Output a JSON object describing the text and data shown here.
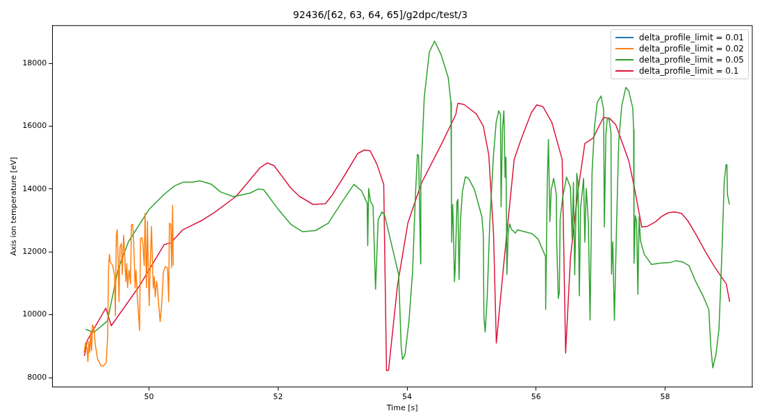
{
  "chart_data": {
    "type": "line",
    "title": "92436/[62, 63, 64, 65]/g2dpc/test/3",
    "xlabel": "Time [s]",
    "ylabel": "Axis ion temperature [eV]",
    "xlim": [
      48.5,
      59.35
    ],
    "xticks": [
      50,
      52,
      54,
      56,
      58
    ],
    "ylim": [
      7700,
      19200
    ],
    "yticks": [
      8000,
      10000,
      12000,
      14000,
      16000,
      18000
    ],
    "legend": "top right",
    "series": [
      {
        "name": "delta_profile_limit = 0.01",
        "color": "#1f77b4"
      },
      {
        "name": "delta_profile_limit = 0.02",
        "color": "#ff7f0e",
        "x": [
          48.993,
          49.018,
          49.039,
          49.053,
          49.067,
          49.082,
          49.096,
          49.11,
          49.124,
          49.146,
          49.17,
          49.205,
          49.259,
          49.295,
          49.337,
          49.359,
          49.372,
          49.386,
          49.401,
          49.436,
          49.465,
          49.479,
          49.493,
          49.507,
          49.524,
          49.535,
          49.55,
          49.571,
          49.585,
          49.606,
          49.62,
          49.641,
          49.656,
          49.667,
          49.691,
          49.713,
          49.727,
          49.748,
          49.763,
          49.784,
          49.798,
          49.819,
          49.833,
          49.854,
          49.869,
          49.89,
          49.904,
          49.926,
          49.939,
          49.961,
          49.976,
          49.989,
          50.003,
          50.018,
          50.039,
          50.053,
          50.067,
          50.082,
          50.096,
          50.117,
          50.131,
          50.146,
          50.173,
          50.199,
          50.223,
          50.252,
          50.287,
          50.305,
          50.316,
          50.337,
          50.351,
          50.365,
          50.376
        ],
        "values": [
          8800,
          9120,
          8930,
          8510,
          9150,
          8800,
          9440,
          8860,
          9680,
          9570,
          9010,
          8580,
          8370,
          8370,
          8480,
          9290,
          11420,
          11920,
          11670,
          11570,
          11280,
          9970,
          12530,
          12700,
          11570,
          10420,
          12140,
          12270,
          11280,
          12530,
          12060,
          11060,
          11630,
          10860,
          11420,
          10990,
          12850,
          12880,
          12270,
          10850,
          11420,
          10570,
          10140,
          9500,
          12430,
          12450,
          12270,
          11570,
          13230,
          10860,
          12980,
          11420,
          10290,
          11570,
          12810,
          11700,
          10850,
          11210,
          10570,
          11060,
          10850,
          10420,
          9780,
          10420,
          11350,
          11530,
          11490,
          10420,
          12910,
          12880,
          11490,
          13480,
          11560
        ]
      },
      {
        "name": "delta_profile_limit = 0.05",
        "color": "#2ca02c",
        "x": [
          49.018,
          49.146,
          49.355,
          49.521,
          49.681,
          50.0,
          50.234,
          50.394,
          50.532,
          50.67,
          50.787,
          50.968,
          51.106,
          51.309,
          51.564,
          51.691,
          51.777,
          51.989,
          52.202,
          52.383,
          52.58,
          52.777,
          52.979,
          53.176,
          53.294,
          53.381,
          53.39,
          53.404,
          53.433,
          53.472,
          53.511,
          53.552,
          53.611,
          53.649,
          53.869,
          53.909,
          53.929,
          53.968,
          54.028,
          54.085,
          54.128,
          54.16,
          54.178,
          54.198,
          54.21,
          54.213,
          54.266,
          54.345,
          54.426,
          54.528,
          54.638,
          54.679,
          54.686,
          54.691,
          54.706,
          54.718,
          54.734,
          54.745,
          54.773,
          54.787,
          54.805,
          54.826,
          54.857,
          54.904,
          54.952,
          55.043,
          55.16,
          55.181,
          55.191,
          55.21,
          55.241,
          55.282,
          55.34,
          55.381,
          55.42,
          55.447,
          55.457,
          55.479,
          55.5,
          55.519,
          55.532,
          55.547,
          55.567,
          55.59,
          55.617,
          55.678,
          55.71,
          55.936,
          56.032,
          56.146,
          56.148,
          56.173,
          56.191,
          56.213,
          56.234,
          56.272,
          56.313,
          56.319,
          56.344,
          56.36,
          56.372,
          56.412,
          56.471,
          56.531,
          56.559,
          56.578,
          56.598,
          56.63,
          56.649,
          56.67,
          56.689,
          56.736,
          56.755,
          56.777,
          56.809,
          56.836,
          56.867,
          56.904,
          56.947,
          57.006,
          57.046,
          57.057,
          57.081,
          57.101,
          57.128,
          57.16,
          57.168,
          57.188,
          57.213,
          57.248,
          57.28,
          57.327,
          57.39,
          57.436,
          57.498,
          57.511,
          57.517,
          57.537,
          57.557,
          57.577,
          57.596,
          57.617,
          57.676,
          57.734,
          57.787,
          57.915,
          58.072,
          58.17,
          58.27,
          58.37,
          58.468,
          58.585,
          58.676,
          58.707,
          58.738,
          58.787,
          58.834,
          58.883,
          58.915,
          58.945,
          58.957,
          58.965,
          58.997
        ],
        "values": [
          9540,
          9440,
          9800,
          11440,
          12320,
          13350,
          13830,
          14100,
          14220,
          14220,
          14260,
          14150,
          13910,
          13760,
          13870,
          14000,
          13980,
          13390,
          12870,
          12640,
          12680,
          12910,
          13550,
          14150,
          13940,
          13550,
          12200,
          14020,
          13600,
          13470,
          10810,
          13030,
          13270,
          13190,
          11280,
          8980,
          8580,
          8730,
          9780,
          11360,
          13740,
          15100,
          15070,
          12950,
          11620,
          14380,
          16920,
          18360,
          18710,
          18270,
          17540,
          16760,
          14540,
          12310,
          13510,
          12790,
          11050,
          11440,
          13590,
          13670,
          11120,
          12950,
          13910,
          14390,
          14340,
          13990,
          13110,
          12550,
          9930,
          9450,
          10520,
          12950,
          15100,
          16130,
          16490,
          16380,
          13430,
          15960,
          16490,
          14370,
          15020,
          11280,
          12640,
          12890,
          12720,
          12600,
          12700,
          12580,
          12400,
          11850,
          10170,
          14220,
          15580,
          12960,
          13980,
          14340,
          13830,
          12310,
          10520,
          10730,
          13030,
          13740,
          14380,
          14060,
          12400,
          14220,
          11270,
          14500,
          14220,
          10600,
          13390,
          14340,
          12310,
          14020,
          12960,
          9830,
          14540,
          15960,
          16760,
          16960,
          16530,
          12790,
          15730,
          16210,
          16250,
          15810,
          11290,
          12320,
          9820,
          12960,
          15500,
          16650,
          17230,
          17120,
          16570,
          15900,
          11640,
          13150,
          12960,
          10650,
          13110,
          12360,
          11920,
          11760,
          11600,
          11640,
          11660,
          11720,
          11680,
          11560,
          11080,
          10610,
          10170,
          8980,
          8310,
          8740,
          9540,
          12170,
          14220,
          14780,
          14770,
          13830,
          13510
        ]
      },
      {
        "name": "delta_profile_limit = 0.1",
        "color": "#dc143c",
        "x": [
          49.0,
          49.043,
          49.33,
          49.415,
          49.862,
          50.234,
          50.34,
          50.521,
          50.819,
          51.032,
          51.351,
          51.723,
          51.83,
          51.936,
          52.202,
          52.33,
          52.543,
          52.734,
          52.84,
          53.021,
          53.234,
          53.34,
          53.426,
          53.532,
          53.638,
          53.681,
          53.713,
          53.851,
          54.011,
          54.223,
          54.543,
          54.755,
          54.787,
          54.883,
          55.074,
          55.181,
          55.266,
          55.34,
          55.383,
          55.5,
          55.66,
          55.766,
          55.926,
          56.011,
          56.106,
          56.245,
          56.404,
          56.457,
          56.532,
          56.649,
          56.755,
          56.883,
          57.043,
          57.138,
          57.234,
          57.436,
          57.521,
          57.638,
          57.734,
          57.851,
          57.947,
          58.053,
          58.149,
          58.255,
          58.351,
          58.468,
          58.628,
          58.766,
          58.947,
          59.0
        ],
        "values": [
          8690,
          9180,
          10210,
          9650,
          10950,
          12230,
          12290,
          12700,
          13000,
          13280,
          13770,
          14680,
          14830,
          14750,
          14020,
          13770,
          13510,
          13530,
          13810,
          14400,
          15130,
          15240,
          15220,
          14790,
          14150,
          8220,
          8240,
          10930,
          12910,
          14190,
          15470,
          16370,
          16730,
          16690,
          16390,
          16000,
          15090,
          12570,
          9100,
          11650,
          14940,
          15580,
          16430,
          16680,
          16620,
          16110,
          14940,
          8780,
          11820,
          13950,
          15450,
          15620,
          16280,
          16250,
          16050,
          14900,
          14060,
          12790,
          12820,
          12960,
          13130,
          13250,
          13270,
          13220,
          12990,
          12590,
          11990,
          11520,
          10980,
          10410
        ]
      }
    ]
  }
}
